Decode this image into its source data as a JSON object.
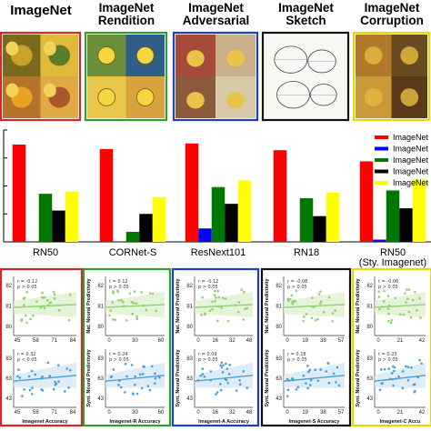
{
  "datasets": [
    {
      "title_lines": [
        "ImageNet"
      ],
      "color": "#d62728"
    },
    {
      "title_lines": [
        "ImageNet",
        "Rendition"
      ],
      "color": "#2ca02c"
    },
    {
      "title_lines": [
        "ImageNet",
        "Adversarial"
      ],
      "color": "#1f3fbf"
    },
    {
      "title_lines": [
        "ImageNet",
        "Sketch"
      ],
      "color": "#111111"
    },
    {
      "title_lines": [
        "ImageNet",
        "Corruption"
      ],
      "color": "#e6d800"
    }
  ],
  "chart_data": {
    "type": "bar",
    "categories": [
      "RN50",
      "CORNet-S",
      "ResNext101",
      "RN18",
      "RN50\n(Sty. Imagenet)"
    ],
    "ylim": [
      0,
      100
    ],
    "legend_position": "right",
    "legend_labels": [
      "ImageNet",
      "ImageNet",
      "ImageNet",
      "ImageNet",
      "ImageNet"
    ],
    "series": [
      {
        "color": "#ff0000",
        "values": [
          87,
          83,
          88,
          82,
          72
        ]
      },
      {
        "color": "#0000ff",
        "values": [
          0,
          0,
          12,
          0,
          2
        ]
      },
      {
        "color": "#007700",
        "values": [
          43,
          9,
          49,
          39,
          46
        ]
      },
      {
        "color": "#000000",
        "values": [
          28,
          25,
          34,
          23,
          30
        ]
      },
      {
        "color": "#ffff00",
        "values": [
          45,
          40,
          55,
          44,
          56
        ]
      }
    ]
  },
  "scatter_panels": [
    {
      "border": "#d62728",
      "xlabel": "Imagenet Accuracy",
      "xticks": [
        "45",
        "58",
        "71",
        "84"
      ],
      "top": {
        "r": "r = -0.12",
        "p": "p > 0.05",
        "ylabel": "",
        "yticks": [
          "82",
          "81",
          "80"
        ],
        "color": "#8fd16b"
      },
      "bottom": {
        "r": "r = 0.32",
        "p": "p < 0.05",
        "ylabel": "",
        "yticks": [
          "83",
          "63",
          "43"
        ],
        "color": "#4a9fd8"
      }
    },
    {
      "border": "#2ca02c",
      "xlabel": "Imagenet-R Accuracy",
      "xticks": [
        "0",
        "30",
        "60"
      ],
      "top": {
        "r": "r = 0.12",
        "p": "p > 0.05",
        "ylabel": "Nat. Neural Predictivity",
        "yticks": [
          "82",
          "81",
          "80"
        ],
        "color": "#8fd16b"
      },
      "bottom": {
        "r": "r = 0.24",
        "p": "p > 0.05",
        "ylabel": "Synt. Neural Predictivity",
        "yticks": [
          "83",
          "63",
          "43"
        ],
        "color": "#4a9fd8"
      }
    },
    {
      "border": "#1f3fbf",
      "xlabel": "Imagenet-A Accuracy",
      "xticks": [
        "0",
        "16",
        "32",
        "48"
      ],
      "top": {
        "r": "r = -0.12",
        "p": "p > 0.05",
        "ylabel": "Nat. Neural Predictivity",
        "yticks": [
          "82",
          "81",
          "80"
        ],
        "color": "#8fd16b"
      },
      "bottom": {
        "r": "r = 0.09",
        "p": "p > 0.05",
        "ylabel": "Synt. Neural Predictivity",
        "yticks": [
          "83",
          "63",
          "43"
        ],
        "color": "#4a9fd8"
      }
    },
    {
      "border": "#111111",
      "xlabel": "Imagenet-S Accuracy",
      "xticks": [
        "0",
        "19",
        "38",
        "57"
      ],
      "top": {
        "r": "r = -0.08",
        "p": "p > 0.05",
        "ylabel": "Nat. Neural Predictivity",
        "yticks": [
          "82",
          "81",
          "80"
        ],
        "color": "#8fd16b"
      },
      "bottom": {
        "r": "r = 0.18",
        "p": "p > 0.05",
        "ylabel": "Synt. Neural Predictivity",
        "yticks": [
          "83",
          "63",
          "43"
        ],
        "color": "#4a9fd8"
      }
    },
    {
      "border": "#e6d800",
      "xlabel": "Imagenet-C Accu",
      "xticks": [
        "0",
        "21",
        "42"
      ],
      "top": {
        "r": "r = -0.06",
        "p": "p > 0.05",
        "ylabel": "Nat. Neural Predictivity",
        "yticks": [
          "82",
          "81",
          "80"
        ],
        "color": "#8fd16b"
      },
      "bottom": {
        "r": "r = 0.23",
        "p": "p > 0.05",
        "ylabel": "Synt. Neural Predictivity",
        "yticks": [
          "83",
          "63",
          "43"
        ],
        "color": "#4a9fd8"
      }
    }
  ]
}
